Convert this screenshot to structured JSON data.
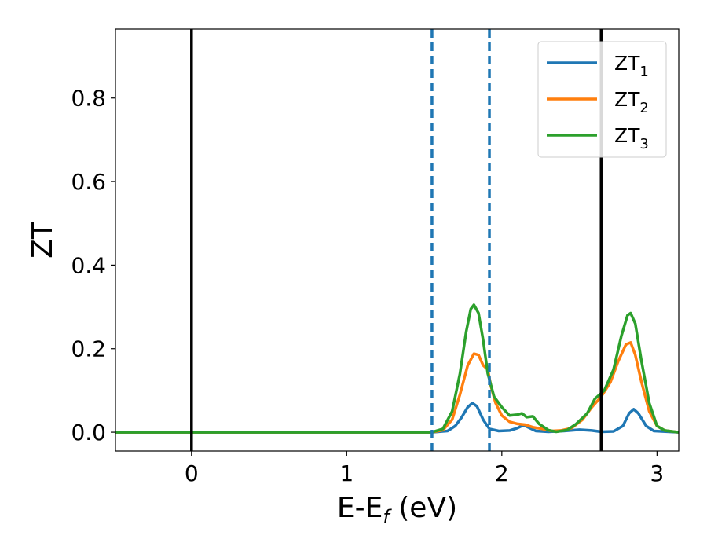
{
  "chart_data": {
    "type": "line",
    "xlabel": "E-E_f (eV)",
    "xlabel_parts": {
      "main": "E-E",
      "sub": "f",
      "unit": " (eV)"
    },
    "ylabel": "ZT",
    "xlim": [
      -0.49,
      3.14
    ],
    "ylim": [
      -0.045,
      0.965
    ],
    "xticks": [
      0,
      1,
      2,
      3
    ],
    "yticks": [
      0.0,
      0.2,
      0.4,
      0.6,
      0.8
    ],
    "ytick_labels": [
      "0.0",
      "0.2",
      "0.4",
      "0.6",
      "0.8"
    ],
    "grid": false,
    "legend_position": "top-right",
    "vlines": [
      {
        "x": 0.0,
        "style": "solid",
        "color": "#000000"
      },
      {
        "x": 2.64,
        "style": "solid",
        "color": "#000000"
      },
      {
        "x": 1.55,
        "style": "dashed",
        "color": "#1f77b4"
      },
      {
        "x": 1.92,
        "style": "dashed",
        "color": "#1f77b4"
      }
    ],
    "series": [
      {
        "name": "ZT_1",
        "label_main": "ZT",
        "label_sub": "1",
        "color": "#1f77b4",
        "points": [
          [
            -0.49,
            0
          ],
          [
            1.55,
            0
          ],
          [
            1.65,
            0.003
          ],
          [
            1.7,
            0.015
          ],
          [
            1.74,
            0.035
          ],
          [
            1.78,
            0.06
          ],
          [
            1.81,
            0.07
          ],
          [
            1.84,
            0.062
          ],
          [
            1.88,
            0.03
          ],
          [
            1.92,
            0.008
          ],
          [
            1.98,
            0.003
          ],
          [
            2.05,
            0.004
          ],
          [
            2.1,
            0.01
          ],
          [
            2.14,
            0.017
          ],
          [
            2.18,
            0.01
          ],
          [
            2.22,
            0.003
          ],
          [
            2.3,
            0.001
          ],
          [
            2.4,
            0.003
          ],
          [
            2.5,
            0.006
          ],
          [
            2.58,
            0.004
          ],
          [
            2.64,
            0.001
          ],
          [
            2.72,
            0.002
          ],
          [
            2.78,
            0.015
          ],
          [
            2.82,
            0.045
          ],
          [
            2.85,
            0.055
          ],
          [
            2.88,
            0.045
          ],
          [
            2.93,
            0.015
          ],
          [
            2.98,
            0.003
          ],
          [
            3.14,
            0
          ]
        ]
      },
      {
        "name": "ZT_2",
        "label_main": "ZT",
        "label_sub": "2",
        "color": "#ff7f0e",
        "points": [
          [
            -0.49,
            0
          ],
          [
            1.55,
            0
          ],
          [
            1.62,
            0.005
          ],
          [
            1.68,
            0.03
          ],
          [
            1.73,
            0.09
          ],
          [
            1.78,
            0.16
          ],
          [
            1.82,
            0.188
          ],
          [
            1.85,
            0.185
          ],
          [
            1.88,
            0.16
          ],
          [
            1.91,
            0.15
          ],
          [
            1.93,
            0.11
          ],
          [
            1.96,
            0.07
          ],
          [
            2.0,
            0.04
          ],
          [
            2.05,
            0.025
          ],
          [
            2.1,
            0.02
          ],
          [
            2.15,
            0.018
          ],
          [
            2.2,
            0.012
          ],
          [
            2.26,
            0.008
          ],
          [
            2.32,
            0.003
          ],
          [
            2.38,
            0.004
          ],
          [
            2.45,
            0.01
          ],
          [
            2.52,
            0.03
          ],
          [
            2.58,
            0.06
          ],
          [
            2.64,
            0.085
          ],
          [
            2.7,
            0.12
          ],
          [
            2.75,
            0.17
          ],
          [
            2.8,
            0.21
          ],
          [
            2.83,
            0.215
          ],
          [
            2.86,
            0.185
          ],
          [
            2.9,
            0.12
          ],
          [
            2.95,
            0.05
          ],
          [
            3.0,
            0.015
          ],
          [
            3.05,
            0.004
          ],
          [
            3.14,
            0
          ]
        ]
      },
      {
        "name": "ZT_3",
        "label_main": "ZT",
        "label_sub": "3",
        "color": "#2ca02c",
        "points": [
          [
            -0.49,
            0
          ],
          [
            1.55,
            0
          ],
          [
            1.62,
            0.008
          ],
          [
            1.68,
            0.05
          ],
          [
            1.73,
            0.14
          ],
          [
            1.77,
            0.24
          ],
          [
            1.8,
            0.295
          ],
          [
            1.82,
            0.305
          ],
          [
            1.85,
            0.285
          ],
          [
            1.88,
            0.22
          ],
          [
            1.91,
            0.14
          ],
          [
            1.95,
            0.085
          ],
          [
            2.0,
            0.06
          ],
          [
            2.05,
            0.04
          ],
          [
            2.1,
            0.042
          ],
          [
            2.13,
            0.045
          ],
          [
            2.16,
            0.036
          ],
          [
            2.2,
            0.038
          ],
          [
            2.24,
            0.02
          ],
          [
            2.3,
            0.005
          ],
          [
            2.35,
            0.001
          ],
          [
            2.42,
            0.005
          ],
          [
            2.48,
            0.02
          ],
          [
            2.55,
            0.045
          ],
          [
            2.6,
            0.08
          ],
          [
            2.66,
            0.1
          ],
          [
            2.72,
            0.15
          ],
          [
            2.77,
            0.23
          ],
          [
            2.81,
            0.28
          ],
          [
            2.83,
            0.285
          ],
          [
            2.86,
            0.26
          ],
          [
            2.9,
            0.17
          ],
          [
            2.95,
            0.07
          ],
          [
            3.0,
            0.015
          ],
          [
            3.05,
            0.004
          ],
          [
            3.14,
            0
          ]
        ]
      }
    ]
  }
}
